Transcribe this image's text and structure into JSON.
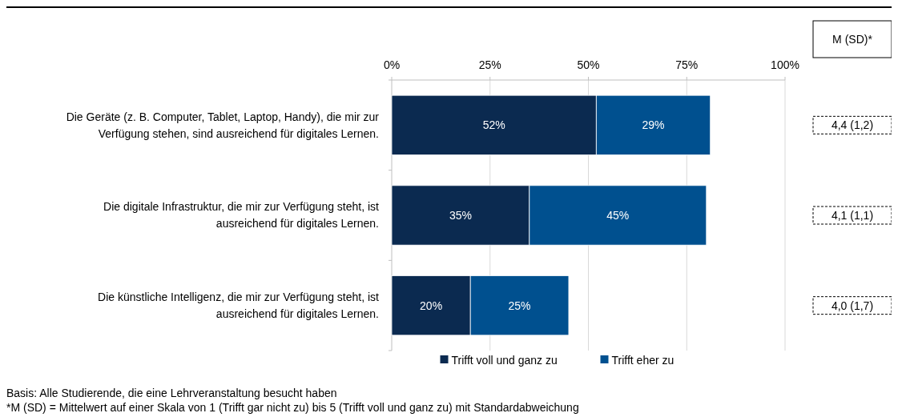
{
  "chart_data": {
    "type": "bar",
    "orientation": "horizontal",
    "stacked": true,
    "categories": [
      "Die Geräte (z. B. Computer, Tablet, Laptop, Handy), die mir zur Verfügung stehen, sind ausreichend für digitales Lernen.",
      "Die digitale Infrastruktur, die mir zur Verfügung steht, ist ausreichend für digitales Lernen.",
      "Die künstliche Intelligenz, die mir zur Verfügung steht, ist ausreichend für digitales Lernen."
    ],
    "series": [
      {
        "name": "Trifft voll und ganz zu",
        "color": "#0b2a50",
        "values": [
          52,
          35,
          20
        ],
        "value_labels": [
          "52%",
          "35%",
          "20%"
        ]
      },
      {
        "name": "Trifft eher zu",
        "color": "#00508f",
        "values": [
          29,
          45,
          25
        ],
        "value_labels": [
          "29%",
          "45%",
          "25%"
        ]
      }
    ],
    "xlim": [
      0,
      100
    ],
    "xticks": [
      {
        "value": 0,
        "label": "0%"
      },
      {
        "value": 25,
        "label": "25%"
      },
      {
        "value": 50,
        "label": "50%"
      },
      {
        "value": 75,
        "label": "75%"
      },
      {
        "value": 100,
        "label": "100%"
      }
    ],
    "grid": "x",
    "legend": "bottom",
    "annotations": [
      "M (SD)*",
      "4,4 (1,2)",
      "4,1 (1,1)",
      "4,0 (1,7)",
      "Basis: Alle Studierende, die eine Lehrveranstaltung besucht haben",
      "*M (SD) = Mittelwert auf einer Skala von 1 (Trifft gar nicht zu) bis 5 (Trifft voll und ganz zu) mit Standardabweichung"
    ]
  }
}
